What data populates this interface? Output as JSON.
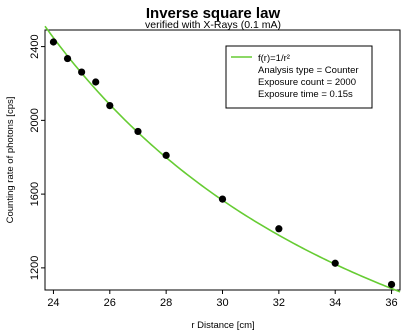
{
  "chart_data": {
    "type": "scatter",
    "title": "Inverse square law",
    "subtitle": "verified with X-Rays (0.1 mA)",
    "xlabel": "r Distance [cm]",
    "ylabel": "Counting rate of photons [cps]",
    "xlim": [
      23.7,
      36.3
    ],
    "ylim": [
      1080,
      2490
    ],
    "xticks": [
      24,
      26,
      28,
      30,
      32,
      34,
      36
    ],
    "yticks": [
      1200,
      1600,
      2000,
      2400
    ],
    "grid": false,
    "legend_position": "top-right",
    "series": [
      {
        "type": "scatter",
        "color": "#000000",
        "x": [
          24,
          24.5,
          25,
          25.5,
          26,
          27,
          28,
          30,
          32,
          34,
          36
        ],
        "y": [
          2425,
          2335,
          2262,
          2208,
          2080,
          1940,
          1810,
          1573,
          1412,
          1225,
          1110
        ]
      },
      {
        "type": "line",
        "name": "f(r)=1/r²",
        "color": "#66cc33",
        "function": "A/r^2",
        "A": 1410000
      }
    ],
    "legend_lines": [
      "Analysis type = Counter",
      "Exposure count = 2000",
      "Exposure time = 0.15s"
    ]
  }
}
